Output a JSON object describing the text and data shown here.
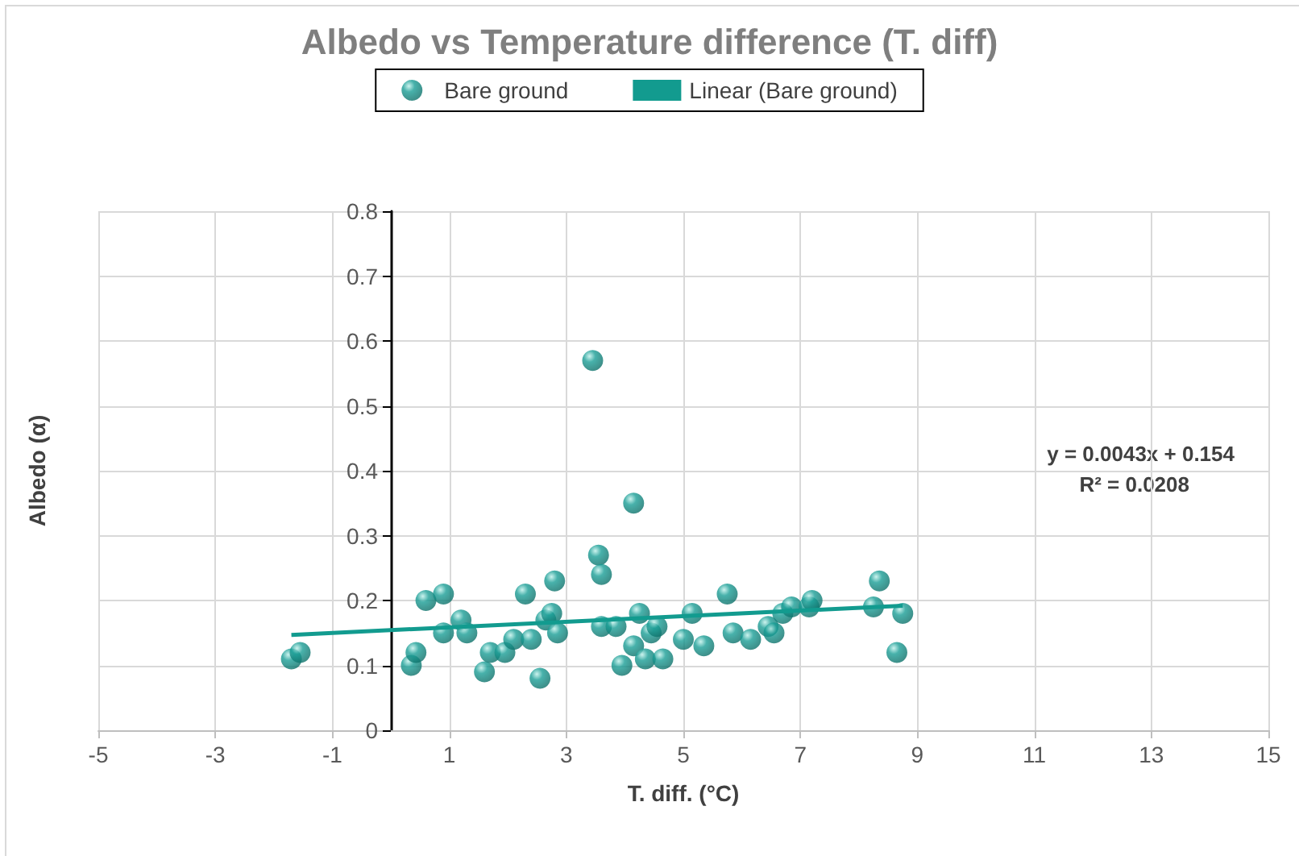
{
  "chart_data": {
    "type": "scatter",
    "title": "Albedo vs Temperature difference (T. diff)",
    "xlabel": "T. diff. (°C)",
    "ylabel": "Albedo (α)",
    "xlim": [
      -5,
      15
    ],
    "xticks": [
      -5,
      -3,
      -1,
      1,
      3,
      5,
      7,
      9,
      11,
      13,
      15
    ],
    "ylim": [
      0,
      0.8
    ],
    "yticks": [
      0,
      0.1,
      0.2,
      0.3,
      0.4,
      0.5,
      0.6,
      0.7,
      0.8
    ],
    "grid": true,
    "legend": "top",
    "marker": "circle",
    "series": [
      {
        "name": "Bare ground",
        "color": "#1a9e96",
        "x": [
          -1.7,
          -1.55,
          0.35,
          0.43,
          0.6,
          0.9,
          0.9,
          1.2,
          1.3,
          1.6,
          1.7,
          1.95,
          2.1,
          2.3,
          2.4,
          2.55,
          2.65,
          2.75,
          2.8,
          2.85,
          3.45,
          3.55,
          3.6,
          3.6,
          3.85,
          3.95,
          4.15,
          4.25,
          4.15,
          4.35,
          4.45,
          4.55,
          4.65,
          5.0,
          5.15,
          5.35,
          5.75,
          5.85,
          6.15,
          6.45,
          6.55,
          6.7,
          6.85,
          7.15,
          7.2,
          8.25,
          8.35,
          8.65,
          8.75
        ],
        "values": [
          0.11,
          0.12,
          0.1,
          0.12,
          0.2,
          0.21,
          0.15,
          0.17,
          0.15,
          0.09,
          0.12,
          0.12,
          0.14,
          0.21,
          0.14,
          0.08,
          0.17,
          0.18,
          0.23,
          0.15,
          0.57,
          0.27,
          0.24,
          0.16,
          0.16,
          0.1,
          0.35,
          0.18,
          0.13,
          0.11,
          0.15,
          0.16,
          0.11,
          0.14,
          0.18,
          0.13,
          0.21,
          0.15,
          0.14,
          0.16,
          0.15,
          0.18,
          0.19,
          0.19,
          0.2,
          0.19,
          0.23,
          0.12,
          0.18
        ]
      },
      {
        "name": "Linear (Bare ground)",
        "type": "line",
        "color": "#129b8f",
        "marker": "none",
        "x": [
          -1.7,
          8.75
        ],
        "values": [
          0.147,
          0.192
        ]
      }
    ],
    "annotations": [
      "y = 0.0043x + 0.154",
      "R² = 0.0208"
    ]
  }
}
